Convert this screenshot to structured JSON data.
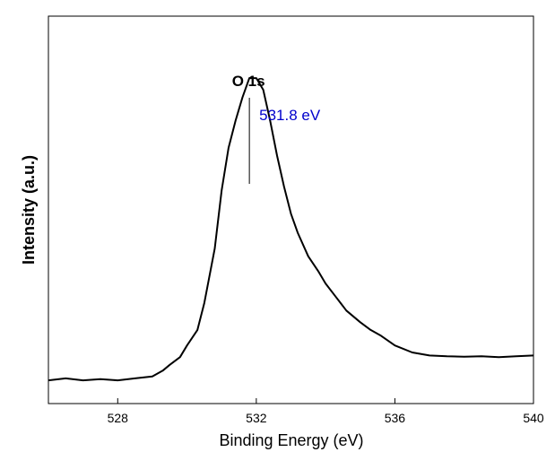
{
  "chart_data": {
    "type": "line",
    "xlabel": "Binding Energy (eV)",
    "ylabel": "Intensity (a.u.)",
    "xlim": [
      526,
      540
    ],
    "ylim": [
      0,
      100
    ],
    "x_ticks": [
      "528",
      "532",
      "536",
      "540"
    ],
    "y_ticks": [],
    "grid": false,
    "series": [
      {
        "x": [
          526.0,
          526.5,
          527.0,
          527.5,
          528.0,
          528.5,
          529.0,
          529.3,
          529.5,
          529.8,
          530.0,
          530.3,
          530.5,
          530.8,
          531.0,
          531.2,
          531.4,
          531.6,
          531.8,
          532.0,
          532.2,
          532.4,
          532.6,
          532.8,
          533.0,
          533.2,
          533.5,
          533.8,
          534.0,
          534.3,
          534.6,
          535.0,
          535.3,
          535.6,
          536.0,
          536.5,
          537.0,
          537.5,
          538.0,
          538.5,
          539.0,
          539.5,
          540.0
        ],
        "y": [
          6,
          6.5,
          6,
          6.3,
          6,
          6.5,
          7,
          8.5,
          10,
          12,
          15,
          19,
          26,
          40,
          55,
          66,
          73,
          79,
          84,
          84,
          81,
          73,
          64,
          56,
          49,
          44,
          38,
          34,
          31,
          27.5,
          24,
          21,
          19,
          17.5,
          15,
          13.2,
          12.4,
          12.2,
          12.1,
          12.2,
          12,
          12.2,
          12.4
        ],
        "color": "#000000"
      }
    ],
    "annotations": [
      {
        "text": "O 1s",
        "x": 531.8,
        "color": "#000000"
      },
      {
        "text": "531.8 eV",
        "x": 531.8,
        "color": "#0000cc"
      }
    ]
  }
}
